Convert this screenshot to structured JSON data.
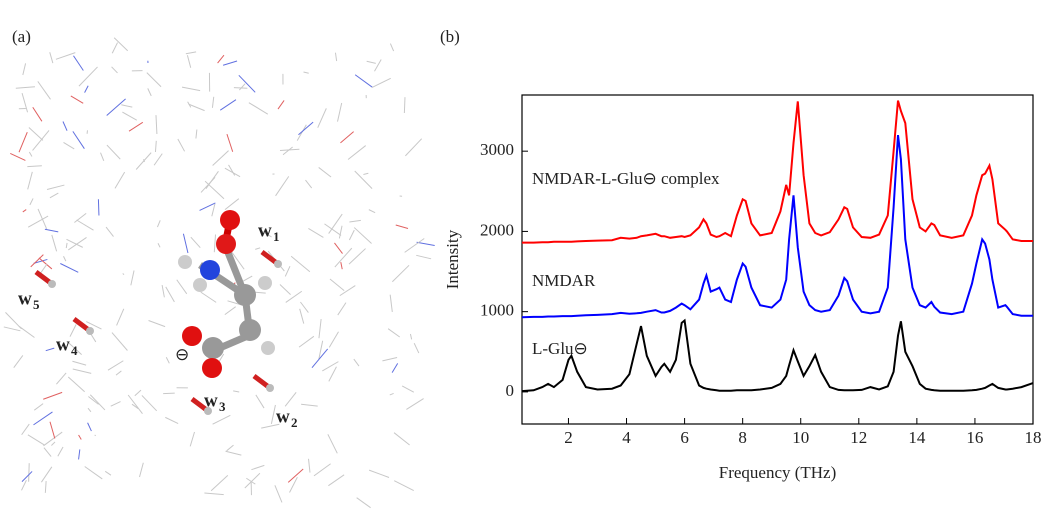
{
  "panel_labels": [
    "(a)",
    "(b)"
  ],
  "molecule": {
    "charge": "⊖",
    "water_labels": [
      {
        "text": "w",
        "sub": "1"
      },
      {
        "text": "w",
        "sub": "2"
      },
      {
        "text": "w",
        "sub": "3"
      },
      {
        "text": "w",
        "sub": "4"
      },
      {
        "text": "w",
        "sub": "5"
      }
    ]
  },
  "chart_data": {
    "type": "line",
    "xlabel": "Frequency (THz)",
    "ylabel": "Intensity",
    "xlim": [
      0.4,
      18
    ],
    "xticks": [
      2,
      4,
      6,
      8,
      10,
      12,
      14,
      16,
      18
    ],
    "ylim": [
      -400,
      3700
    ],
    "yticks": [
      0,
      1000,
      2000,
      3000
    ],
    "grid": false,
    "annotations": [
      "NMDAR-L-Glu⊖ complex",
      "NMDAR",
      "L-Glu⊖"
    ],
    "x": [
      0.4,
      0.8,
      1.1,
      1.3,
      1.5,
      1.8,
      2.0,
      2.1,
      2.3,
      2.6,
      3.0,
      3.5,
      3.8,
      4.1,
      4.35,
      4.5,
      4.7,
      5.0,
      5.2,
      5.3,
      5.5,
      5.7,
      5.9,
      6.0,
      6.2,
      6.5,
      6.65,
      6.75,
      6.9,
      7.1,
      7.2,
      7.4,
      7.6,
      7.8,
      8.0,
      8.1,
      8.3,
      8.6,
      9.0,
      9.3,
      9.5,
      9.6,
      9.75,
      9.9,
      10.1,
      10.3,
      10.5,
      10.7,
      11.0,
      11.3,
      11.5,
      11.6,
      11.8,
      12.1,
      12.4,
      12.7,
      13.0,
      13.2,
      13.35,
      13.45,
      13.6,
      13.85,
      14.1,
      14.3,
      14.5,
      14.6,
      14.8,
      15.2,
      15.6,
      15.9,
      16.05,
      16.25,
      16.35,
      16.5,
      16.6,
      16.8,
      17.05,
      17.1,
      17.3,
      17.6,
      18.0
    ],
    "series": [
      {
        "color": "#ff0000",
        "values": [
          1860,
          1860,
          1865,
          1865,
          1870,
          1870,
          1870,
          1870,
          1875,
          1880,
          1885,
          1890,
          1920,
          1910,
          1920,
          1940,
          1950,
          1970,
          1940,
          1940,
          1920,
          1930,
          1940,
          1930,
          1950,
          2050,
          2150,
          2100,
          1960,
          1930,
          1940,
          1980,
          1940,
          2200,
          2400,
          2380,
          2100,
          1950,
          1980,
          2250,
          2580,
          2450,
          3100,
          3620,
          2700,
          2100,
          1980,
          1950,
          1990,
          2150,
          2300,
          2280,
          2050,
          1930,
          1920,
          1960,
          2200,
          3000,
          3630,
          3500,
          3350,
          2400,
          2050,
          2000,
          2100,
          2080,
          1950,
          1920,
          1950,
          2200,
          2450,
          2700,
          2720,
          2820,
          2650,
          2100,
          2020,
          2000,
          1900,
          1880,
          1880
        ]
      },
      {
        "color": "#0000ff",
        "values": [
          930,
          935,
          935,
          940,
          940,
          945,
          945,
          945,
          950,
          955,
          960,
          970,
          985,
          975,
          980,
          985,
          1000,
          1020,
          990,
          990,
          1010,
          1050,
          1100,
          1080,
          1030,
          1150,
          1350,
          1450,
          1250,
          1280,
          1300,
          1150,
          1120,
          1400,
          1600,
          1560,
          1300,
          1080,
          1050,
          1150,
          1400,
          1900,
          2450,
          1800,
          1250,
          1080,
          1020,
          1000,
          1020,
          1200,
          1420,
          1380,
          1150,
          1000,
          980,
          1000,
          1300,
          2300,
          3200,
          2900,
          1900,
          1300,
          1080,
          1050,
          1120,
          1060,
          990,
          970,
          1000,
          1350,
          1600,
          1900,
          1850,
          1650,
          1400,
          1050,
          1080,
          1060,
          970,
          950,
          950
        ]
      },
      {
        "color": "#000000",
        "values": [
          10,
          20,
          60,
          100,
          60,
          150,
          400,
          450,
          250,
          60,
          30,
          40,
          80,
          220,
          600,
          820,
          450,
          200,
          310,
          350,
          250,
          400,
          860,
          890,
          350,
          80,
          50,
          40,
          30,
          20,
          15,
          15,
          15,
          20,
          20,
          20,
          20,
          30,
          50,
          100,
          200,
          330,
          520,
          380,
          200,
          320,
          460,
          250,
          60,
          25,
          20,
          20,
          20,
          25,
          60,
          30,
          70,
          250,
          700,
          880,
          500,
          320,
          100,
          40,
          25,
          20,
          15,
          15,
          15,
          20,
          25,
          40,
          50,
          80,
          100,
          50,
          30,
          30,
          40,
          60,
          110
        ]
      }
    ]
  }
}
